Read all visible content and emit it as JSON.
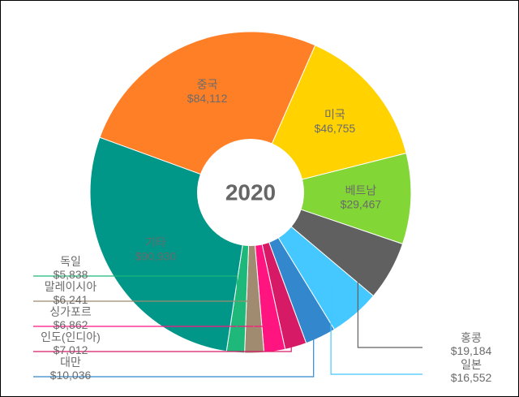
{
  "chart_data": {
    "type": "pie",
    "title": "",
    "center_label": "2020",
    "slices": [
      {
        "label": "중국",
        "value": 84112,
        "value_label": "$84,112",
        "color": "#ff7f27",
        "label_position": "inside"
      },
      {
        "label": "미국",
        "value": 46755,
        "value_label": "$46,755",
        "color": "#ffd200",
        "label_position": "inside"
      },
      {
        "label": "베트남",
        "value": 29467,
        "value_label": "$29,467",
        "color": "#82d636",
        "label_position": "inside"
      },
      {
        "label": "홍콩",
        "value": 19184,
        "value_label": "$19,184",
        "color": "#606060",
        "label_position": "outside-right"
      },
      {
        "label": "일본",
        "value": 16552,
        "value_label": "$16,552",
        "color": "#45c7ff",
        "label_position": "outside-right"
      },
      {
        "label": "대만",
        "value": 10036,
        "value_label": "$10,036",
        "color": "#3387cc",
        "label_position": "outside-left"
      },
      {
        "label": "인도(인디아)",
        "value": 7012,
        "value_label": "$7,012",
        "color": "#d61a66",
        "label_position": "outside-left"
      },
      {
        "label": "싱가포르",
        "value": 6862,
        "value_label": "$6,862",
        "color": "#ff1480",
        "label_position": "outside-left"
      },
      {
        "label": "말레이시아",
        "value": 6241,
        "value_label": "$6,241",
        "color": "#a08b70",
        "label_position": "outside-left"
      },
      {
        "label": "독일",
        "value": 5838,
        "value_label": "$5,838",
        "color": "#1eb87a",
        "label_position": "outside-left"
      },
      {
        "label": "기타",
        "value": 90930,
        "value_label": "$90,930",
        "color": "#009688",
        "label_position": "inside"
      }
    ]
  }
}
